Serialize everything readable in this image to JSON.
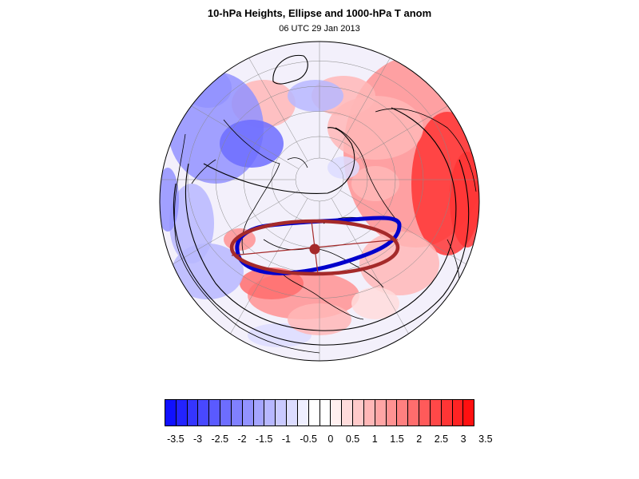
{
  "title": "10-hPa Heights, Ellipse and 1000-hPa T anom",
  "subtitle": "06 UTC 29 Jan 2013",
  "colors": {
    "warm": "#ff0000",
    "cold": "#0000ff",
    "ellipse": "#a52a2a",
    "observed_vortex_edge": "#0000cc",
    "height_contour": "#000000",
    "coastline": "#000000"
  },
  "map": {
    "projection": "north-polar-orthographic",
    "field": "1000-hPa temperature anomaly",
    "overlays": [
      "10-hPa height contours",
      "polar vortex edge",
      "fitted ellipse",
      "ellipse centroid"
    ]
  },
  "colorbar": {
    "levels": [
      "-3.5",
      "-3",
      "-2.5",
      "-2",
      "-1.5",
      "-1",
      "-0.5",
      "0",
      "0.5",
      "1",
      "1.5",
      "2",
      "2.5",
      "3",
      "3.5"
    ],
    "colors": [
      "#1010ff",
      "#2323ff",
      "#3535ff",
      "#4848ff",
      "#5a5aff",
      "#6d6dff",
      "#8080ff",
      "#9292ff",
      "#a5a5ff",
      "#b7b7ff",
      "#cacaff",
      "#dcdcff",
      "#efefff",
      "#ffffff",
      "#ffffff",
      "#ffefef",
      "#ffdcdc",
      "#ffcaca",
      "#ffb7b7",
      "#ffa5a5",
      "#ff9292",
      "#ff8080",
      "#ff6d6d",
      "#ff5a5a",
      "#ff4848",
      "#ff3535",
      "#ff2323",
      "#ff1010"
    ]
  }
}
